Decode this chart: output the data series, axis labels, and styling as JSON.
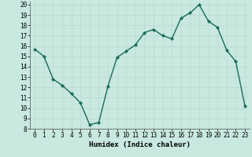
{
  "x": [
    0,
    1,
    2,
    3,
    4,
    5,
    6,
    7,
    8,
    9,
    10,
    11,
    12,
    13,
    14,
    15,
    16,
    17,
    18,
    19,
    20,
    21,
    22,
    23
  ],
  "y": [
    15.7,
    15.0,
    12.8,
    12.2,
    11.4,
    10.5,
    8.4,
    8.6,
    12.1,
    14.9,
    15.5,
    16.1,
    17.3,
    17.6,
    17.0,
    16.7,
    18.7,
    19.2,
    20.0,
    18.4,
    17.8,
    15.6,
    14.5,
    10.2
  ],
  "xlabel": "Humidex (Indice chaleur)",
  "ylabel": "",
  "xlim": [
    -0.5,
    23.5
  ],
  "ylim": [
    8,
    20.3
  ],
  "yticks": [
    8,
    9,
    10,
    11,
    12,
    13,
    14,
    15,
    16,
    17,
    18,
    19,
    20
  ],
  "xticks": [
    0,
    1,
    2,
    3,
    4,
    5,
    6,
    7,
    8,
    9,
    10,
    11,
    12,
    13,
    14,
    15,
    16,
    17,
    18,
    19,
    20,
    21,
    22,
    23
  ],
  "line_color": "#1a6b5a",
  "marker_color": "#1a6b5a",
  "bg_color": "#c8e8e0",
  "grid_color": "#b8d8d0",
  "xlabel_fontsize": 6.5,
  "tick_fontsize": 5.5,
  "linewidth": 1.0,
  "markersize": 2.2
}
